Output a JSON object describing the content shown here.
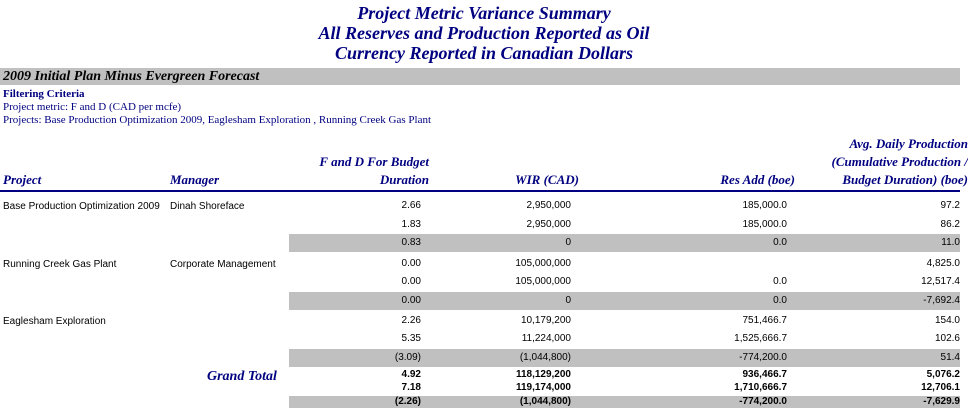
{
  "titles": [
    "Project Metric Variance Summary",
    "All Reserves and Production Reported as Oil",
    "Currency Reported in Canadian Dollars"
  ],
  "section": "2009 Initial Plan Minus Evergreen Forecast",
  "filter": {
    "title": "Filtering Criteria",
    "metric": "Project metric: F and D (CAD per mcfe)",
    "projects": "Projects: Base Production Optimization 2009, Eaglesham Exploration , Running Creek Gas Plant"
  },
  "headers": {
    "project": "Project",
    "manager": "Manager",
    "fd_line1": "F and D For Budget",
    "fd_line2": "Duration",
    "wir": "WIR (CAD)",
    "res": "Res Add (boe)",
    "avg_line1": "Avg. Daily Production",
    "avg_line2": "(Cumulative Production /",
    "avg_line3": "Budget Duration) (boe)"
  },
  "projects": [
    {
      "name": "Base Production Optimization 2009",
      "manager": "Dinah Shoreface",
      "rows": [
        {
          "fd": "2.66",
          "wir": "2,950,000",
          "res": "185,000.0",
          "avg": "97.2"
        },
        {
          "fd": "1.83",
          "wir": "2,950,000",
          "res": "185,000.0",
          "avg": "86.2"
        },
        {
          "fd": "0.83",
          "wir": "0",
          "res": "0.0",
          "avg": "11.0"
        }
      ]
    },
    {
      "name": "Running Creek Gas Plant",
      "manager": "Corporate Management",
      "rows": [
        {
          "fd": "0.00",
          "wir": "105,000,000",
          "res": "",
          "avg": "4,825.0"
        },
        {
          "fd": "0.00",
          "wir": "105,000,000",
          "res": "0.0",
          "avg": "12,517.4"
        },
        {
          "fd": "0.00",
          "wir": "0",
          "res": "0.0",
          "avg": "-7,692.4"
        }
      ]
    },
    {
      "name": "Eaglesham Exploration",
      "manager": "",
      "rows": [
        {
          "fd": "2.26",
          "wir": "10,179,200",
          "res": "751,466.7",
          "avg": "154.0"
        },
        {
          "fd": "5.35",
          "wir": "11,224,000",
          "res": "1,525,666.7",
          "avg": "102.6"
        },
        {
          "fd": "(3.09)",
          "wir": "(1,044,800)",
          "res": "-774,200.0",
          "avg": "51.4"
        }
      ]
    }
  ],
  "grand_total": {
    "label": "Grand Total",
    "rows": [
      {
        "fd": "4.92",
        "wir": "118,129,200",
        "res": "936,466.7",
        "avg": "5,076.2"
      },
      {
        "fd": "7.18",
        "wir": "119,174,000",
        "res": "1,710,666.7",
        "avg": "12,706.1"
      },
      {
        "fd": "(2.26)",
        "wir": "(1,044,800)",
        "res": "-774,200.0",
        "avg": "-7,629.9"
      }
    ]
  }
}
